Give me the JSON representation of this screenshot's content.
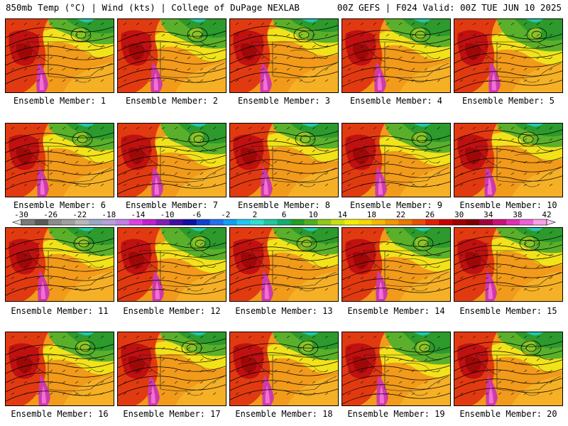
{
  "header": {
    "left_title": "850mb Temp (°C) | Wind (kts) | College of DuPage NEXLAB",
    "right_title": "00Z GEFS | F024 Valid: 00Z TUE JUN 10 2025"
  },
  "caption_prefix": "Ensemble Member: ",
  "members": [
    {
      "label": "Ensemble Member: 1"
    },
    {
      "label": "Ensemble Member: 2"
    },
    {
      "label": "Ensemble Member: 3"
    },
    {
      "label": "Ensemble Member: 4"
    },
    {
      "label": "Ensemble Member: 5"
    },
    {
      "label": "Ensemble Member: 6"
    },
    {
      "label": "Ensemble Member: 7"
    },
    {
      "label": "Ensemble Member: 8"
    },
    {
      "label": "Ensemble Member: 9"
    },
    {
      "label": "Ensemble Member: 10"
    },
    {
      "label": "Ensemble Member: 11"
    },
    {
      "label": "Ensemble Member: 12"
    },
    {
      "label": "Ensemble Member: 13"
    },
    {
      "label": "Ensemble Member: 14"
    },
    {
      "label": "Ensemble Member: 15"
    },
    {
      "label": "Ensemble Member: 16"
    },
    {
      "label": "Ensemble Member: 17"
    },
    {
      "label": "Ensemble Member: 18"
    },
    {
      "label": "Ensemble Member: 19"
    },
    {
      "label": "Ensemble Member: 20"
    }
  ],
  "colorbar": {
    "tick_labels": [
      "-30",
      "-26",
      "-22",
      "-18",
      "-14",
      "-10",
      "-6",
      "-2",
      "2",
      "6",
      "10",
      "14",
      "18",
      "22",
      "26",
      "30",
      "34",
      "38",
      "42"
    ],
    "colors": [
      "#7a7a7a",
      "#5a5a5a",
      "#8c8c8c",
      "#a0a0a0",
      "#b8b8b8",
      "#9aa8c8",
      "#b8a0d8",
      "#c080e8",
      "#e040e0",
      "#c020d0",
      "#8020b0",
      "#4010a0",
      "#1010a0",
      "#1040d0",
      "#2070f0",
      "#10a0f0",
      "#20c8f0",
      "#30e0d0",
      "#20c8a0",
      "#10b070",
      "#20a020",
      "#50b020",
      "#90c818",
      "#c8e010",
      "#f0f000",
      "#f8d800",
      "#f8b800",
      "#f09800",
      "#e87800",
      "#e85000",
      "#e02000",
      "#c80000",
      "#a00000",
      "#800000",
      "#a00040",
      "#c81078",
      "#e030b0",
      "#f060d8",
      "#f8a0e8"
    ]
  }
}
